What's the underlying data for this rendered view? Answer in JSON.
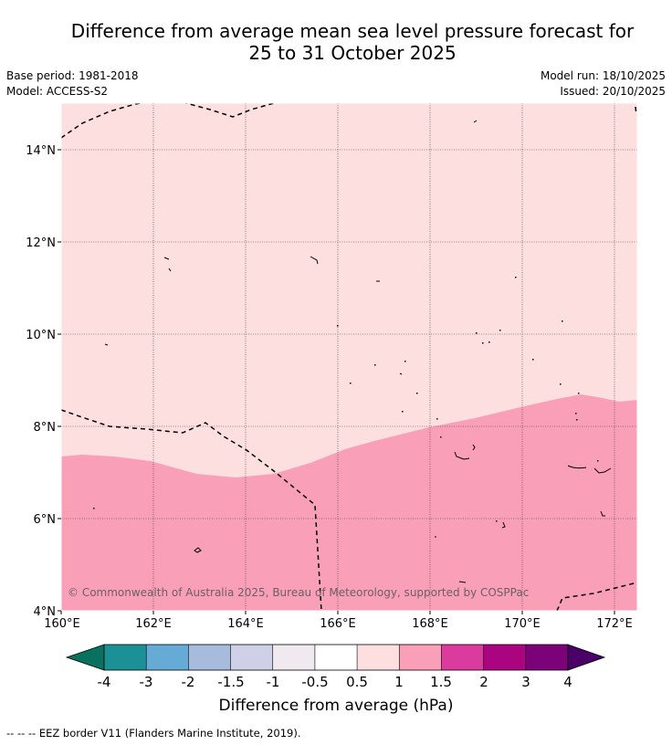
{
  "title_line1": "Difference from average mean sea level pressure forecast for",
  "title_line2": "25 to 31 October 2025",
  "base_period": "Base period: 1981-2018",
  "model": "Model: ACCESS-S2",
  "model_run": "Model run: 18/10/2025",
  "issued": "Issued: 20/10/2025",
  "copyright": "© Commonwealth of Australia 2025, Bureau of Meteorology, supported by COSPPac",
  "lon_ticks": [
    "160°E",
    "162°E",
    "164°E",
    "166°E",
    "168°E",
    "170°E",
    "172°E"
  ],
  "lat_ticks": [
    "14°N",
    "12°N",
    "10°N",
    "8°N",
    "6°N",
    "4°N"
  ],
  "colorbar": {
    "label": "Difference from average (hPa)",
    "ticks": [
      "-4",
      "-3",
      "-2",
      "-1.5",
      "-1",
      "-0.5",
      "0.5",
      "1",
      "1.5",
      "2",
      "3",
      "4"
    ],
    "under_color": "#0a7060",
    "over_color": "#4b0068",
    "bins": [
      {
        "range": [
          -4,
          -3
        ],
        "color": "#1b9196"
      },
      {
        "range": [
          -3,
          -2
        ],
        "color": "#66aad6"
      },
      {
        "range": [
          -2,
          -1.5
        ],
        "color": "#a7bcdc"
      },
      {
        "range": [
          -1.5,
          -1
        ],
        "color": "#cdd0e6"
      },
      {
        "range": [
          -1,
          -0.5
        ],
        "color": "#f0e9f0"
      },
      {
        "range": [
          -0.5,
          0.5
        ],
        "color": "#ffffff"
      },
      {
        "range": [
          0.5,
          1
        ],
        "color": "#fddfdf"
      },
      {
        "range": [
          1,
          1.5
        ],
        "color": "#f9a0b8"
      },
      {
        "range": [
          1.5,
          2
        ],
        "color": "#dc3b9e"
      },
      {
        "range": [
          2,
          3
        ],
        "color": "#aa0480"
      },
      {
        "range": [
          3,
          4
        ],
        "color": "#7b0278"
      }
    ]
  },
  "map": {
    "extent_lon": [
      160,
      172.5
    ],
    "extent_lat": [
      4,
      15
    ],
    "regions": [
      {
        "band": "0.5 to 1 hPa",
        "color": "#fddfdf"
      },
      {
        "band": "1 to 1.5 hPa",
        "color": "#f9a0b8"
      }
    ]
  },
  "footnote": "-- -- -- EEZ border V11 (Flanders Marine Institute, 2019)."
}
